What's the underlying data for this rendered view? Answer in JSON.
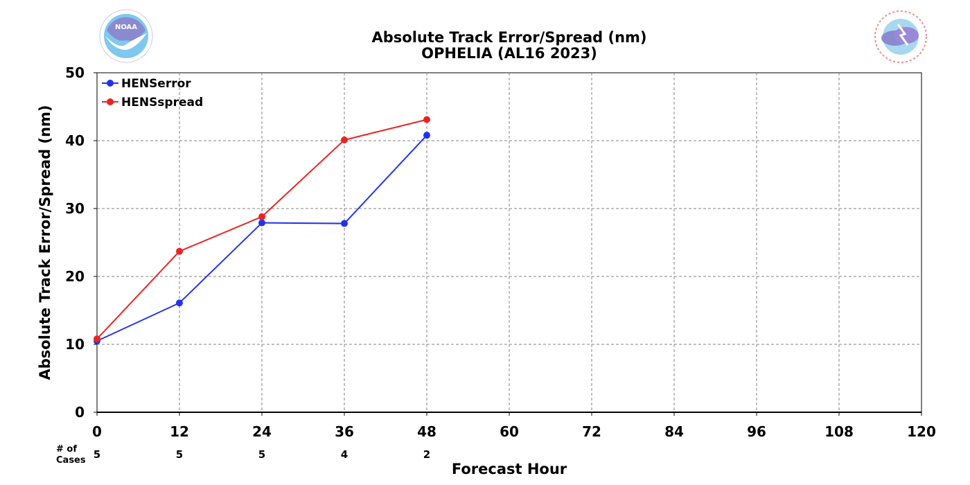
{
  "chart_data": {
    "type": "line",
    "title": "Absolute Track Error/Spread (nm)",
    "subtitle": "OPHELIA (AL16 2023)",
    "xlabel": "Forecast Hour",
    "ylabel": "Absolute Track Error/Spread (nm)",
    "xlim": [
      0,
      120
    ],
    "ylim": [
      0,
      50
    ],
    "xticks": [
      0,
      12,
      24,
      36,
      48,
      60,
      72,
      84,
      96,
      108,
      120
    ],
    "yticks": [
      0,
      10,
      20,
      30,
      40,
      50
    ],
    "grid": true,
    "legend_position": "top-left",
    "series": [
      {
        "name": "HENSerror",
        "color": "#2233ee",
        "x": [
          0,
          12,
          24,
          36,
          48
        ],
        "values": [
          10.5,
          16.1,
          27.9,
          27.8,
          40.8
        ]
      },
      {
        "name": "HENSspread",
        "color": "#ee2222",
        "x": [
          0,
          12,
          24,
          36,
          48
        ],
        "values": [
          10.8,
          23.7,
          28.8,
          40.1,
          43.1
        ]
      }
    ],
    "cases": {
      "label_line1": "# of",
      "label_line2": "Cases",
      "x": [
        0,
        12,
        24,
        36,
        48
      ],
      "counts": [
        "5",
        "5",
        "5",
        "4",
        "2"
      ]
    }
  },
  "logos": {
    "left": {
      "icon": "noaa-logo-icon",
      "text": "NOAA"
    },
    "right": {
      "icon": "nws-logo-icon"
    }
  }
}
